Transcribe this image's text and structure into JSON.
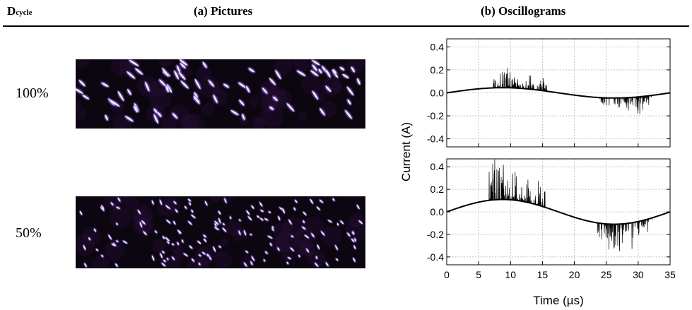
{
  "header": {
    "col_d": "D",
    "col_d_sub": "cycle",
    "col_pictures": "(a) Pictures",
    "col_osc": "(b) Oscillograms"
  },
  "rows": [
    {
      "label": "100%"
    },
    {
      "label": "50%"
    }
  ],
  "chart_data": {
    "type": "line",
    "xlabel": "Time (µs)",
    "ylabel": "Current (A)",
    "xlim": [
      0,
      35
    ],
    "ylim": [
      -0.47,
      0.47
    ],
    "x_ticks": [
      "0",
      "5",
      "10",
      "15",
      "20",
      "25",
      "30",
      "35"
    ],
    "y_ticks": [
      "0.4",
      "0.2",
      "0.0",
      "-0.2",
      "-0.4"
    ],
    "grid": true,
    "panels": [
      {
        "row_label": "100%",
        "baseline_amplitude": 0.045,
        "period": 35,
        "discharge_windows": [
          {
            "start": 7.2,
            "end": 15.8,
            "polarity": "positive",
            "peak": 0.24
          },
          {
            "start": 23.8,
            "end": 32.2,
            "polarity": "negative",
            "peak": -0.2
          }
        ]
      },
      {
        "row_label": "50%",
        "baseline_amplitude": 0.11,
        "period": 35,
        "discharge_windows": [
          {
            "start": 6.6,
            "end": 15.6,
            "polarity": "positive",
            "peak": 0.47
          },
          {
            "start": 23.6,
            "end": 32.2,
            "polarity": "negative",
            "peak": -0.38
          }
        ]
      }
    ]
  }
}
